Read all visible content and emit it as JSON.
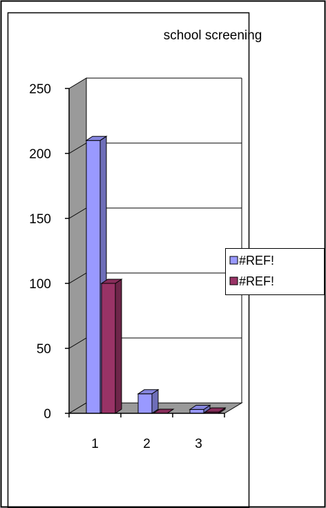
{
  "chart_data": {
    "type": "bar",
    "title": "school screening",
    "categories": [
      "1",
      "2",
      "3"
    ],
    "series": [
      {
        "name": "#REF!",
        "color": "#9999FF",
        "values": [
          210,
          15,
          3
        ]
      },
      {
        "name": "#REF!",
        "color": "#993366",
        "values": [
          100,
          0,
          1
        ]
      }
    ],
    "ylim": [
      0,
      250
    ],
    "yticks": [
      "0",
      "50",
      "100",
      "150",
      "200",
      "250"
    ],
    "grid": true,
    "legend": "right",
    "style": "3d-column"
  }
}
